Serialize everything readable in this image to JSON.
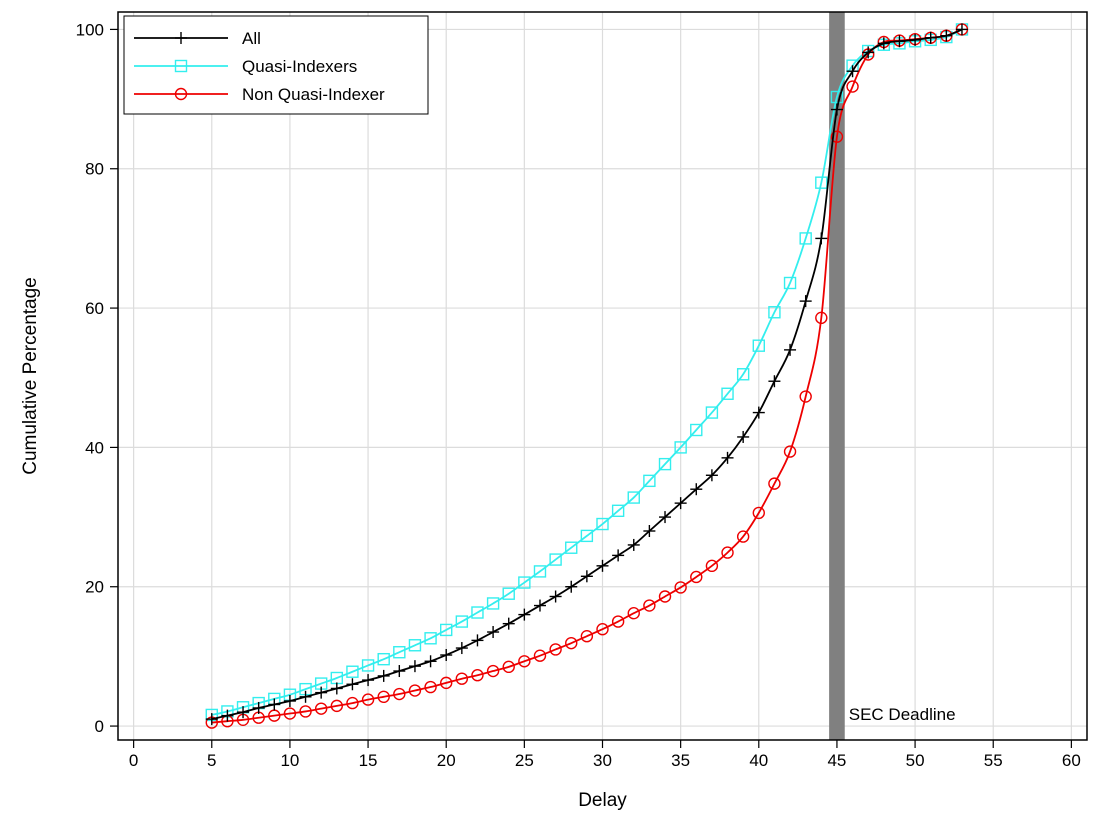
{
  "chart_data": {
    "type": "line",
    "title": "",
    "xlabel": "Delay",
    "ylabel": "Cumulative Percentage",
    "xlim": [
      -1,
      61
    ],
    "ylim": [
      -2,
      102.5
    ],
    "xticks": [
      "0",
      "5",
      "10",
      "15",
      "20",
      "25",
      "30",
      "35",
      "40",
      "45",
      "50",
      "55",
      "60"
    ],
    "yticks": [
      "0",
      "20",
      "40",
      "60",
      "80",
      "100"
    ],
    "grid": true,
    "legend_position": "top-left",
    "x": [
      5,
      6,
      7,
      8,
      9,
      10,
      11,
      12,
      13,
      14,
      15,
      16,
      17,
      18,
      19,
      20,
      21,
      22,
      23,
      24,
      25,
      26,
      27,
      28,
      29,
      30,
      31,
      32,
      33,
      34,
      35,
      36,
      37,
      38,
      39,
      40,
      41,
      42,
      43,
      44,
      45,
      46,
      47,
      48,
      49,
      50,
      51,
      52,
      53
    ],
    "series": [
      {
        "name": "All",
        "color": "#000000",
        "marker": "plus",
        "values": [
          1.0,
          1.5,
          2.0,
          2.6,
          3.1,
          3.6,
          4.2,
          4.8,
          5.4,
          6.0,
          6.6,
          7.2,
          7.9,
          8.6,
          9.3,
          10.2,
          11.2,
          12.3,
          13.5,
          14.7,
          16.0,
          17.3,
          18.6,
          20.0,
          21.5,
          23.0,
          24.5,
          26.0,
          28.0,
          30.0,
          32.0,
          34.0,
          36.0,
          38.5,
          41.5,
          45.0,
          49.5,
          54.0,
          61.0,
          70.0,
          88.5,
          94.0,
          96.7,
          98.0,
          98.3,
          98.5,
          98.8,
          99.1,
          100.0
        ]
      },
      {
        "name": "Quasi-Indexers",
        "color": "#33eeee",
        "marker": "square",
        "values": [
          1.6,
          2.1,
          2.7,
          3.3,
          3.9,
          4.5,
          5.3,
          6.1,
          6.9,
          7.8,
          8.7,
          9.6,
          10.6,
          11.6,
          12.6,
          13.8,
          15.0,
          16.3,
          17.6,
          19.0,
          20.6,
          22.2,
          23.9,
          25.6,
          27.3,
          29.0,
          30.9,
          32.8,
          35.2,
          37.6,
          40.0,
          42.5,
          45.0,
          47.7,
          50.5,
          54.6,
          59.4,
          63.6,
          70.0,
          78.0,
          90.3,
          94.8,
          96.9,
          97.8,
          98.0,
          98.3,
          98.5,
          98.9,
          100.0
        ]
      },
      {
        "name": "Non Quasi-Indexer",
        "color": "#ee0000",
        "marker": "circle",
        "values": [
          0.5,
          0.7,
          0.9,
          1.2,
          1.5,
          1.8,
          2.1,
          2.5,
          2.9,
          3.3,
          3.8,
          4.2,
          4.6,
          5.1,
          5.6,
          6.2,
          6.8,
          7.3,
          7.9,
          8.5,
          9.3,
          10.1,
          11.0,
          11.9,
          12.9,
          13.9,
          15.0,
          16.2,
          17.3,
          18.6,
          19.9,
          21.4,
          23.0,
          24.9,
          27.2,
          30.6,
          34.8,
          39.4,
          47.3,
          58.6,
          84.6,
          91.8,
          96.4,
          98.2,
          98.4,
          98.6,
          98.8,
          99.1,
          100.0
        ]
      }
    ],
    "annotations": [
      {
        "type": "vband",
        "from": 44.5,
        "to": 45.5,
        "color": "#808080",
        "label": "SEC Deadline"
      }
    ]
  }
}
